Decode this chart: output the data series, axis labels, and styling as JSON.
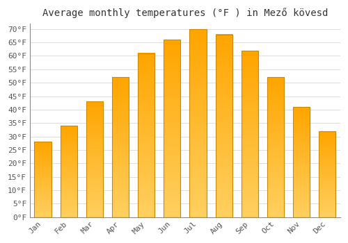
{
  "title": "Average monthly temperatures (°F ) in Mező kövesd",
  "months": [
    "Jan",
    "Feb",
    "Mar",
    "Apr",
    "May",
    "Jun",
    "Jul",
    "Aug",
    "Sep",
    "Oct",
    "Nov",
    "Dec"
  ],
  "values": [
    28,
    34,
    43,
    52,
    61,
    66,
    70,
    68,
    62,
    52,
    41,
    32
  ],
  "bar_color_bottom": "#FFA500",
  "bar_color_top": "#FFD060",
  "bar_edge_color": "#CC8800",
  "background_color": "#FFFFFF",
  "plot_bg_color": "#FFFFFF",
  "ylim": [
    0,
    72
  ],
  "yticks": [
    0,
    5,
    10,
    15,
    20,
    25,
    30,
    35,
    40,
    45,
    50,
    55,
    60,
    65,
    70
  ],
  "ylabel_suffix": "°F",
  "grid_color": "#DDDDDD",
  "title_fontsize": 10,
  "tick_fontsize": 8,
  "tick_color": "#555555",
  "bar_width": 0.65
}
